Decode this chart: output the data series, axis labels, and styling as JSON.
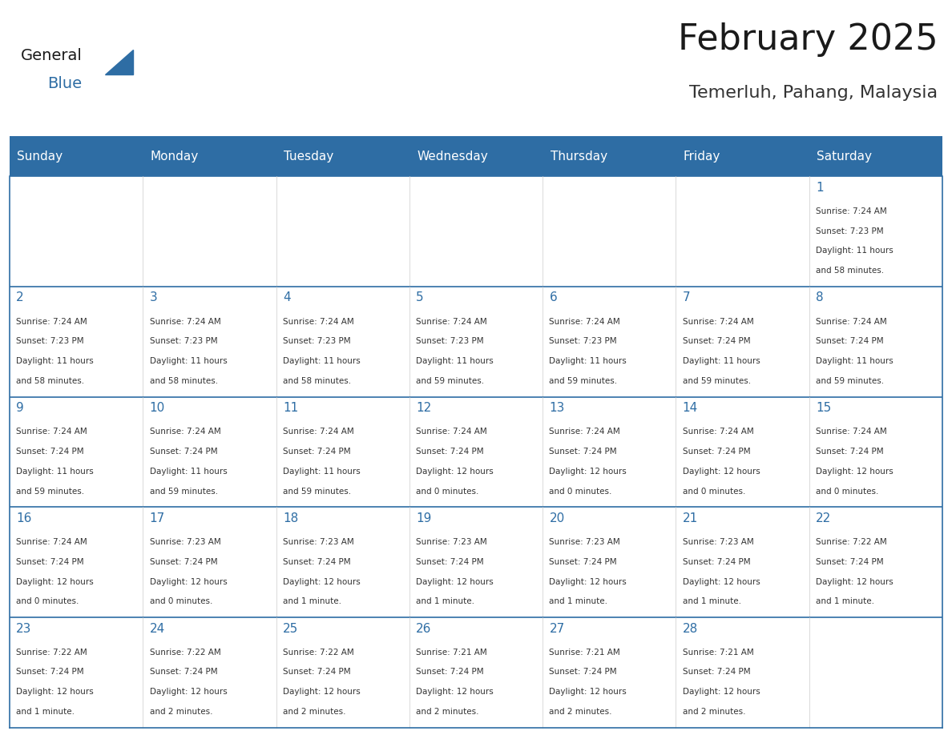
{
  "title": "February 2025",
  "subtitle": "Temerluh, Pahang, Malaysia",
  "header_bg": "#2E6DA4",
  "header_text_color": "#FFFFFF",
  "cell_bg": "#FFFFFF",
  "border_color": "#2E6DA4",
  "day_headers": [
    "Sunday",
    "Monday",
    "Tuesday",
    "Wednesday",
    "Thursday",
    "Friday",
    "Saturday"
  ],
  "title_color": "#1a1a1a",
  "subtitle_color": "#333333",
  "day_num_color": "#2E6DA4",
  "cell_text_color": "#333333",
  "calendar": [
    [
      {
        "day": "",
        "info": ""
      },
      {
        "day": "",
        "info": ""
      },
      {
        "day": "",
        "info": ""
      },
      {
        "day": "",
        "info": ""
      },
      {
        "day": "",
        "info": ""
      },
      {
        "day": "",
        "info": ""
      },
      {
        "day": "1",
        "info": "Sunrise: 7:24 AM\nSunset: 7:23 PM\nDaylight: 11 hours\nand 58 minutes."
      }
    ],
    [
      {
        "day": "2",
        "info": "Sunrise: 7:24 AM\nSunset: 7:23 PM\nDaylight: 11 hours\nand 58 minutes."
      },
      {
        "day": "3",
        "info": "Sunrise: 7:24 AM\nSunset: 7:23 PM\nDaylight: 11 hours\nand 58 minutes."
      },
      {
        "day": "4",
        "info": "Sunrise: 7:24 AM\nSunset: 7:23 PM\nDaylight: 11 hours\nand 58 minutes."
      },
      {
        "day": "5",
        "info": "Sunrise: 7:24 AM\nSunset: 7:23 PM\nDaylight: 11 hours\nand 59 minutes."
      },
      {
        "day": "6",
        "info": "Sunrise: 7:24 AM\nSunset: 7:23 PM\nDaylight: 11 hours\nand 59 minutes."
      },
      {
        "day": "7",
        "info": "Sunrise: 7:24 AM\nSunset: 7:24 PM\nDaylight: 11 hours\nand 59 minutes."
      },
      {
        "day": "8",
        "info": "Sunrise: 7:24 AM\nSunset: 7:24 PM\nDaylight: 11 hours\nand 59 minutes."
      }
    ],
    [
      {
        "day": "9",
        "info": "Sunrise: 7:24 AM\nSunset: 7:24 PM\nDaylight: 11 hours\nand 59 minutes."
      },
      {
        "day": "10",
        "info": "Sunrise: 7:24 AM\nSunset: 7:24 PM\nDaylight: 11 hours\nand 59 minutes."
      },
      {
        "day": "11",
        "info": "Sunrise: 7:24 AM\nSunset: 7:24 PM\nDaylight: 11 hours\nand 59 minutes."
      },
      {
        "day": "12",
        "info": "Sunrise: 7:24 AM\nSunset: 7:24 PM\nDaylight: 12 hours\nand 0 minutes."
      },
      {
        "day": "13",
        "info": "Sunrise: 7:24 AM\nSunset: 7:24 PM\nDaylight: 12 hours\nand 0 minutes."
      },
      {
        "day": "14",
        "info": "Sunrise: 7:24 AM\nSunset: 7:24 PM\nDaylight: 12 hours\nand 0 minutes."
      },
      {
        "day": "15",
        "info": "Sunrise: 7:24 AM\nSunset: 7:24 PM\nDaylight: 12 hours\nand 0 minutes."
      }
    ],
    [
      {
        "day": "16",
        "info": "Sunrise: 7:24 AM\nSunset: 7:24 PM\nDaylight: 12 hours\nand 0 minutes."
      },
      {
        "day": "17",
        "info": "Sunrise: 7:23 AM\nSunset: 7:24 PM\nDaylight: 12 hours\nand 0 minutes."
      },
      {
        "day": "18",
        "info": "Sunrise: 7:23 AM\nSunset: 7:24 PM\nDaylight: 12 hours\nand 1 minute."
      },
      {
        "day": "19",
        "info": "Sunrise: 7:23 AM\nSunset: 7:24 PM\nDaylight: 12 hours\nand 1 minute."
      },
      {
        "day": "20",
        "info": "Sunrise: 7:23 AM\nSunset: 7:24 PM\nDaylight: 12 hours\nand 1 minute."
      },
      {
        "day": "21",
        "info": "Sunrise: 7:23 AM\nSunset: 7:24 PM\nDaylight: 12 hours\nand 1 minute."
      },
      {
        "day": "22",
        "info": "Sunrise: 7:22 AM\nSunset: 7:24 PM\nDaylight: 12 hours\nand 1 minute."
      }
    ],
    [
      {
        "day": "23",
        "info": "Sunrise: 7:22 AM\nSunset: 7:24 PM\nDaylight: 12 hours\nand 1 minute."
      },
      {
        "day": "24",
        "info": "Sunrise: 7:22 AM\nSunset: 7:24 PM\nDaylight: 12 hours\nand 2 minutes."
      },
      {
        "day": "25",
        "info": "Sunrise: 7:22 AM\nSunset: 7:24 PM\nDaylight: 12 hours\nand 2 minutes."
      },
      {
        "day": "26",
        "info": "Sunrise: 7:21 AM\nSunset: 7:24 PM\nDaylight: 12 hours\nand 2 minutes."
      },
      {
        "day": "27",
        "info": "Sunrise: 7:21 AM\nSunset: 7:24 PM\nDaylight: 12 hours\nand 2 minutes."
      },
      {
        "day": "28",
        "info": "Sunrise: 7:21 AM\nSunset: 7:24 PM\nDaylight: 12 hours\nand 2 minutes."
      },
      {
        "day": "",
        "info": ""
      }
    ]
  ],
  "logo_general_color": "#1a1a1a",
  "logo_blue_color": "#2E6DA4",
  "logo_triangle_color": "#2E6DA4"
}
